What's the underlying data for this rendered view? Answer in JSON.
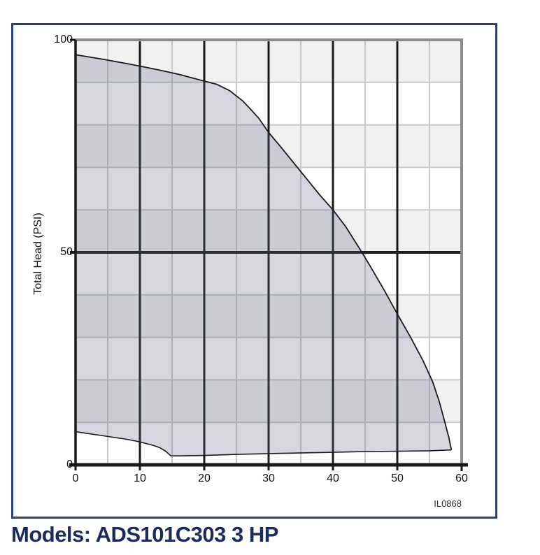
{
  "title": {
    "label": "Models: ADS101C303 3 HP",
    "color": "#1a2c5e"
  },
  "frame": {
    "border_color": "#26426f",
    "background": "#ffffff"
  },
  "chart_data": {
    "type": "area",
    "title": "",
    "xlabel": "",
    "ylabel": "Total Head (PSI)",
    "code_label": "IL0868",
    "xlim": [
      0,
      60
    ],
    "ylim": [
      0,
      100
    ],
    "x_ticks": [
      0,
      10,
      20,
      30,
      40,
      50,
      60
    ],
    "y_ticks": [
      0,
      50,
      100
    ],
    "grid": {
      "minor_x": [
        5,
        15,
        25,
        35,
        45,
        55
      ],
      "major_x": [
        10,
        20,
        30,
        40,
        50
      ],
      "minor_y": [
        10,
        20,
        30,
        40,
        60,
        70,
        80,
        90
      ],
      "major_y": [
        50
      ],
      "band_step": 10
    },
    "colors": {
      "band": "#f1f1f2",
      "grid_minor": "#c8c8c8",
      "grid_major": "#1a1a1a",
      "plot_border": "#8c8c8c",
      "area_fill": "rgba(93,98,133,0.26)",
      "curve": "#1b1b1b",
      "tick_label": "#111111"
    },
    "legend": null,
    "series": [
      {
        "name": "upper-envelope",
        "points": [
          [
            0,
            96.5
          ],
          [
            4,
            95.5
          ],
          [
            8,
            94.4
          ],
          [
            12,
            93.2
          ],
          [
            16,
            91.9
          ],
          [
            20,
            90.3
          ],
          [
            22,
            89.5
          ],
          [
            24,
            88.0
          ],
          [
            25,
            86.8
          ],
          [
            26,
            85.6
          ],
          [
            27,
            84.0
          ],
          [
            28.5,
            81.5
          ],
          [
            30,
            78.2
          ],
          [
            32,
            74.6
          ],
          [
            35,
            69.0
          ],
          [
            38,
            63.4
          ],
          [
            40,
            60.0
          ],
          [
            42,
            56.0
          ],
          [
            44.5,
            50.0
          ],
          [
            46,
            46.2
          ],
          [
            48,
            41.0
          ],
          [
            50,
            35.5
          ],
          [
            52,
            30.2
          ],
          [
            54,
            24.5
          ],
          [
            55.5,
            19.5
          ],
          [
            56.5,
            15.0
          ],
          [
            57.3,
            10.5
          ],
          [
            58,
            6.5
          ],
          [
            58.4,
            3.5
          ]
        ]
      },
      {
        "name": "lower-envelope",
        "points": [
          [
            0,
            7.8
          ],
          [
            4,
            6.9
          ],
          [
            8,
            6.0
          ],
          [
            10,
            5.4
          ],
          [
            11,
            5.0
          ],
          [
            12,
            4.6
          ],
          [
            13,
            4.1
          ],
          [
            14,
            3.2
          ],
          [
            14.8,
            2.1
          ],
          [
            16,
            2.1
          ],
          [
            20,
            2.2
          ],
          [
            26,
            2.5
          ],
          [
            32,
            2.7
          ],
          [
            38,
            2.9
          ],
          [
            44,
            3.1
          ],
          [
            50,
            3.2
          ],
          [
            55,
            3.3
          ],
          [
            58.4,
            3.5
          ]
        ]
      }
    ]
  }
}
